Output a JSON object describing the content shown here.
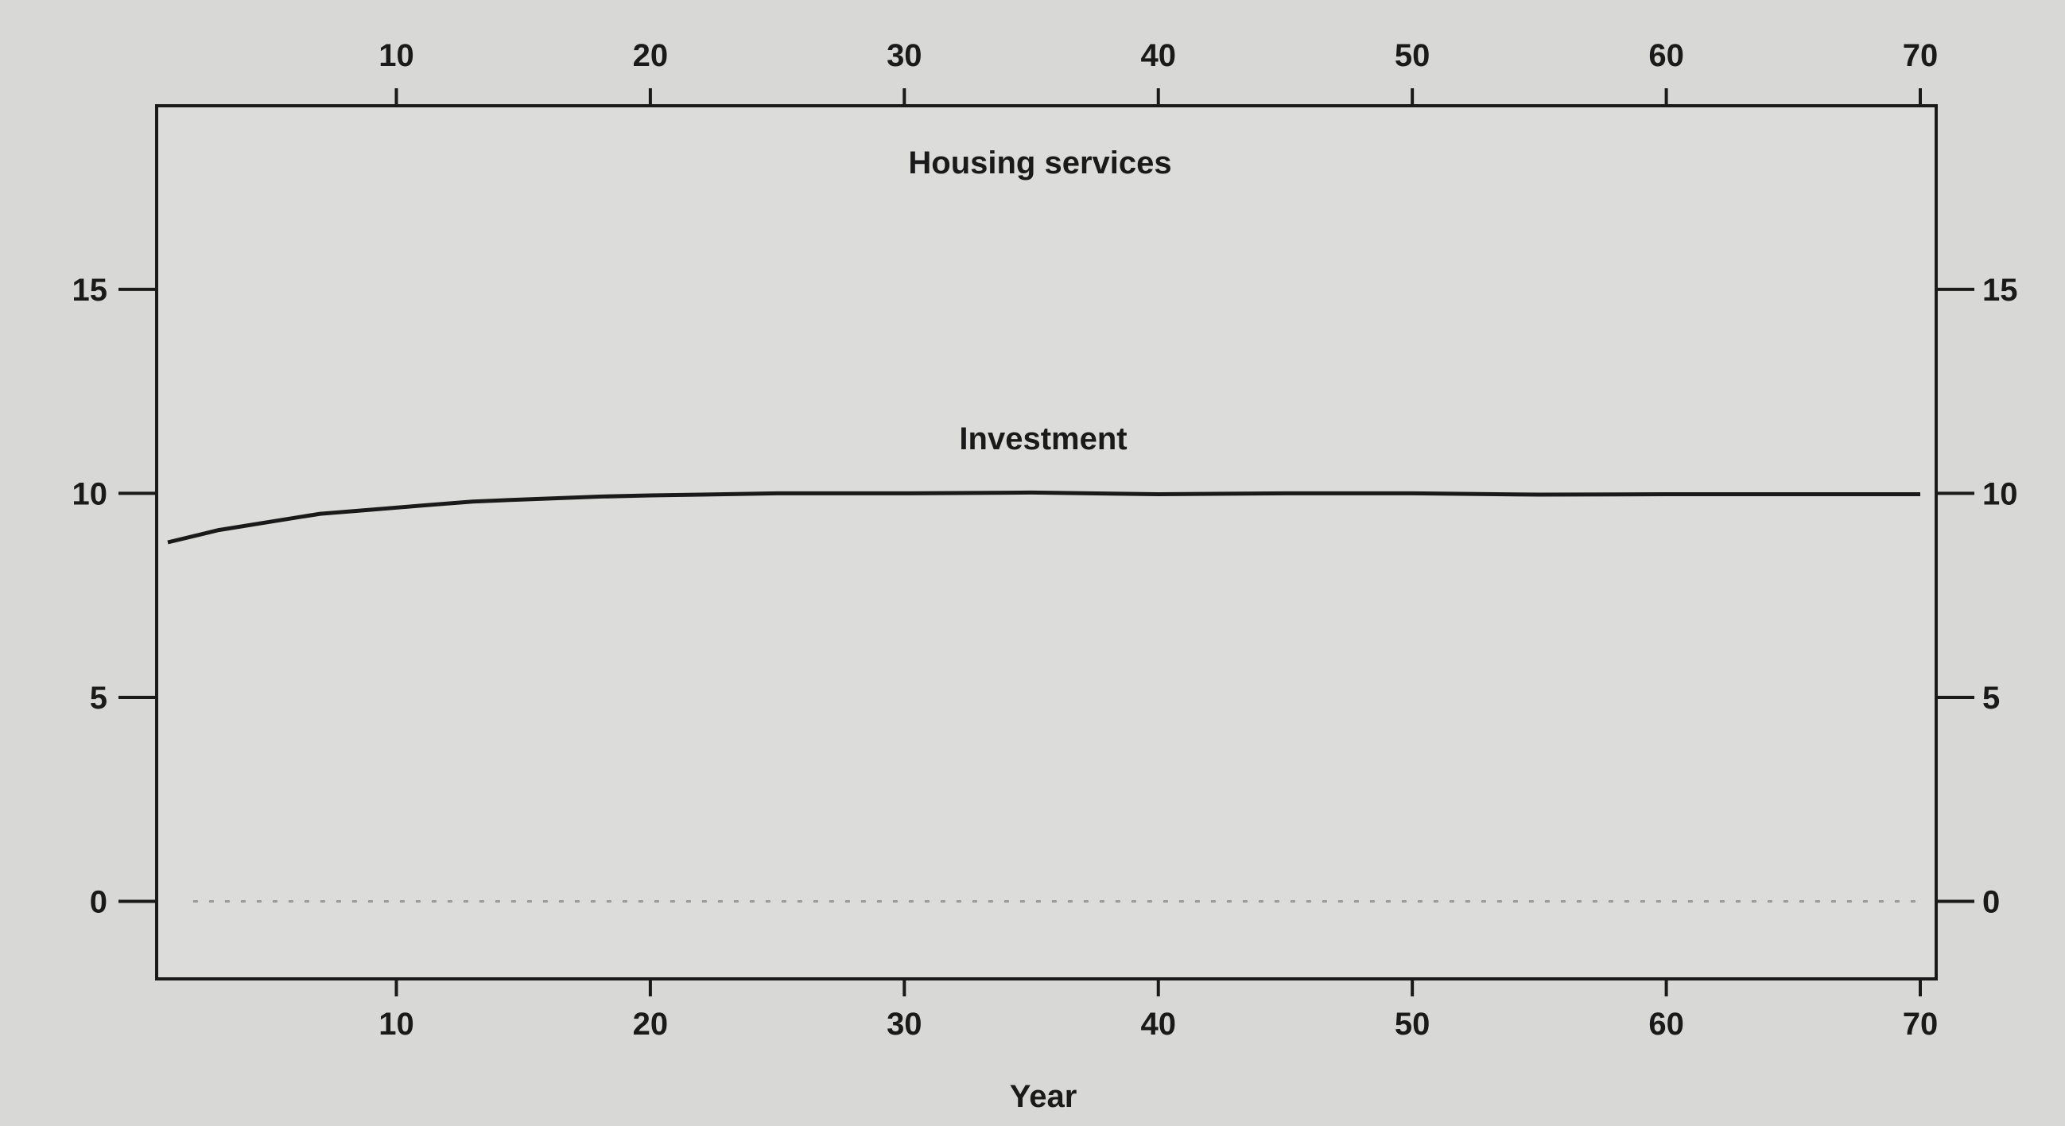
{
  "chart_data": {
    "type": "line",
    "title": "Housing services",
    "xlabel": "Year",
    "ylabel": "",
    "xlim": [
      1,
      70
    ],
    "ylim": [
      -1.9,
      19.5
    ],
    "x_ticks": [
      10,
      20,
      30,
      40,
      50,
      60,
      70
    ],
    "y_ticks": [
      0,
      5,
      10,
      15
    ],
    "grid": false,
    "series": [
      {
        "name": "Investment",
        "style": "solid",
        "x": [
          1,
          3,
          5,
          7,
          9,
          11,
          13,
          15,
          18,
          20,
          25,
          30,
          35,
          40,
          45,
          50,
          55,
          60,
          65,
          70
        ],
        "y": [
          8.8,
          9.1,
          9.3,
          9.5,
          9.6,
          9.7,
          9.8,
          9.85,
          9.92,
          9.95,
          10.0,
          10.0,
          10.02,
          9.98,
          10.0,
          10.0,
          9.97,
          9.98,
          9.98,
          9.98
        ]
      },
      {
        "name": "",
        "style": "dotted",
        "x": [
          2,
          70
        ],
        "y": [
          0,
          0
        ]
      }
    ],
    "colors": {
      "background": "#d8d8d6",
      "plot_bg": "#dcdcda",
      "ink": "#1a1a1a",
      "dotted": "#9a9a9a"
    }
  }
}
